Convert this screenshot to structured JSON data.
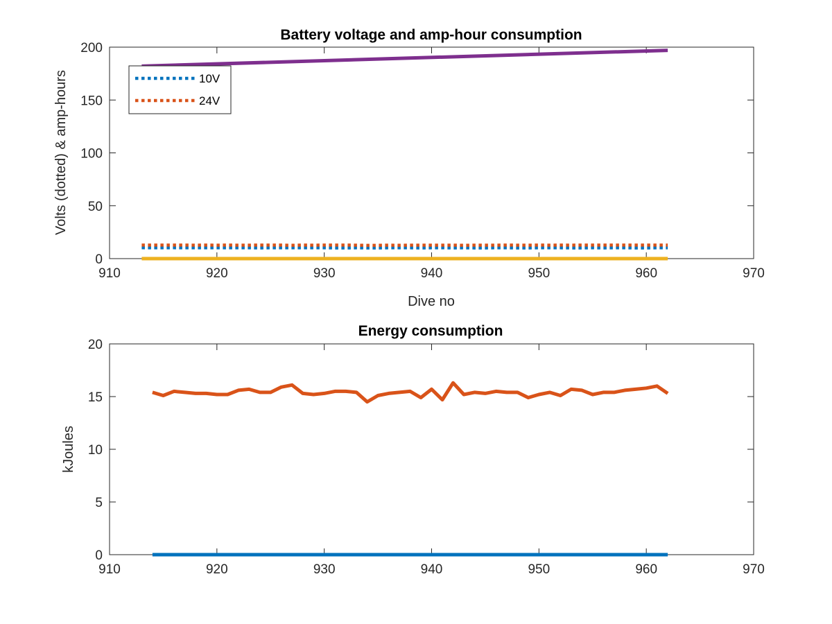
{
  "chart_data": [
    {
      "type": "line",
      "title": "Battery voltage and amp-hour consumption",
      "xlabel": "Dive no",
      "ylabel": "Volts (dotted) & amp-hours",
      "xlim": [
        910,
        970
      ],
      "ylim": [
        0,
        200
      ],
      "xticks": [
        910,
        920,
        930,
        940,
        950,
        960,
        970
      ],
      "yticks": [
        0,
        50,
        100,
        150,
        200
      ],
      "legend": {
        "placement": "top-left",
        "entries": [
          "10V",
          "24V"
        ]
      },
      "grid": false,
      "series": [
        {
          "name": "10V",
          "color": "#0072bd",
          "style": "dotted",
          "x_start": 913,
          "x_end": 962,
          "values": [
            10.3,
            10.2,
            10.2,
            10.3,
            10.2,
            10.2,
            10.2,
            10.2,
            10.2,
            10.2,
            10.2,
            10.1,
            10.2,
            10.2,
            10.2,
            10.2,
            10.2,
            10.2,
            10.1,
            10.1,
            10.2,
            10.1,
            10.1,
            10.2,
            10.2,
            10.2,
            10.1,
            10.2,
            10.2,
            10.1,
            10.2,
            10.1,
            10.1,
            10.2,
            10.2,
            10.1,
            10.1,
            10.2,
            10.2,
            10.2,
            10.1,
            10.1,
            10.2,
            10.1,
            10.2,
            10.2,
            10.1,
            10.1,
            10.2,
            10.2
          ]
        },
        {
          "name": "24V",
          "color": "#d95319",
          "style": "dotted",
          "x_start": 913,
          "x_end": 962,
          "values": [
            12.8,
            12.8,
            12.8,
            12.8,
            12.8,
            12.7,
            12.8,
            12.7,
            12.8,
            12.7,
            12.7,
            12.8,
            12.8,
            12.8,
            12.6,
            12.8,
            12.7,
            12.8,
            12.8,
            12.8,
            12.7,
            12.5,
            12.6,
            12.7,
            12.6,
            12.7,
            12.7,
            12.7,
            12.7,
            12.7,
            12.6,
            12.7,
            12.7,
            12.7,
            12.8,
            12.7,
            12.7,
            12.8,
            12.7,
            12.8,
            12.7,
            12.8,
            12.8,
            12.8,
            12.8,
            12.8,
            12.8,
            12.8,
            12.8,
            12.8
          ]
        },
        {
          "color": "#edb120",
          "style": "solid",
          "x": [
            913,
            962
          ],
          "values": [
            0,
            0
          ]
        },
        {
          "color": "#7e2f8e",
          "style": "solid",
          "x": [
            913,
            962
          ],
          "values": [
            182,
            197
          ]
        }
      ]
    },
    {
      "type": "line",
      "title": "Energy consumption",
      "xlabel": "",
      "ylabel": "kJoules",
      "xlim": [
        910,
        970
      ],
      "ylim": [
        0,
        20
      ],
      "xticks": [
        910,
        920,
        930,
        940,
        950,
        960,
        970
      ],
      "yticks": [
        0,
        5,
        10,
        15,
        20
      ],
      "grid": false,
      "series": [
        {
          "color": "#0072bd",
          "style": "solid",
          "x": [
            914,
            962
          ],
          "values": [
            0,
            0
          ]
        },
        {
          "color": "#d95319",
          "style": "solid",
          "x_start": 914,
          "x_end": 962,
          "values": [
            15.4,
            15.1,
            15.5,
            15.4,
            15.3,
            15.3,
            15.2,
            15.2,
            15.6,
            15.7,
            15.4,
            15.4,
            15.9,
            16.1,
            15.3,
            15.2,
            15.3,
            15.5,
            15.5,
            15.4,
            14.5,
            15.1,
            15.3,
            15.4,
            15.5,
            14.9,
            15.7,
            14.7,
            16.3,
            15.2,
            15.4,
            15.3,
            15.5,
            15.4,
            15.4,
            14.9,
            15.2,
            15.4,
            15.1,
            15.7,
            15.6,
            15.2,
            15.4,
            15.4,
            15.6,
            15.7,
            15.8,
            16.0,
            15.3
          ]
        }
      ]
    }
  ]
}
